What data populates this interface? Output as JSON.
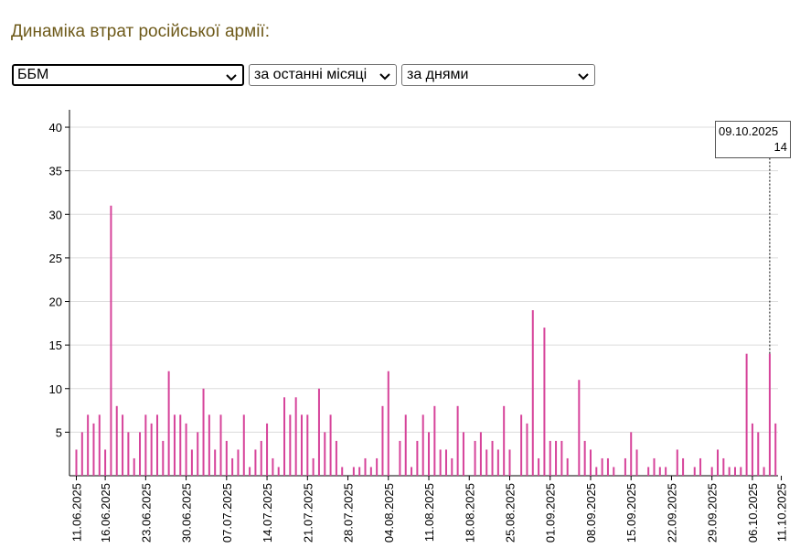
{
  "header": {
    "title": "Динаміка втрат російської армії:"
  },
  "filters": {
    "category": "ББМ",
    "period": "за останні місяці",
    "granularity": "за днями"
  },
  "tooltip": {
    "date": "09.10.2025",
    "value": "14"
  },
  "chart_data": {
    "type": "bar",
    "title": "",
    "xlabel": "",
    "ylabel": "",
    "ylim": [
      0,
      42
    ],
    "yticks": [
      5,
      10,
      15,
      20,
      25,
      30,
      35,
      40
    ],
    "grid": true,
    "bar_color": "#d6439a",
    "start_date": "11.06.2025",
    "x_tick_labels": [
      "11.06.2025",
      "16.06.2025",
      "23.06.2025",
      "30.06.2025",
      "07.07.2025",
      "14.07.2025",
      "21.07.2025",
      "28.07.2025",
      "04.08.2025",
      "11.08.2025",
      "18.08.2025",
      "25.08.2025",
      "01.09.2025",
      "08.09.2025",
      "15.09.2025",
      "22.09.2025",
      "29.09.2025",
      "06.10.2025",
      "11.10.2025"
    ],
    "values": [
      3,
      5,
      7,
      6,
      7,
      3,
      31,
      8,
      7,
      5,
      2,
      5,
      7,
      6,
      7,
      4,
      12,
      7,
      7,
      6,
      3,
      5,
      10,
      7,
      3,
      7,
      4,
      2,
      3,
      7,
      1,
      3,
      4,
      6,
      2,
      1,
      9,
      7,
      9,
      7,
      7,
      2,
      10,
      5,
      7,
      4,
      1,
      0,
      1,
      1,
      2,
      1,
      2,
      8,
      12,
      0,
      4,
      7,
      1,
      4,
      7,
      5,
      8,
      3,
      3,
      2,
      8,
      5,
      0,
      4,
      5,
      3,
      4,
      3,
      8,
      3,
      0,
      7,
      6,
      19,
      2,
      17,
      4,
      4,
      4,
      2,
      0,
      11,
      4,
      3,
      1,
      2,
      2,
      1,
      0,
      2,
      5,
      3,
      0,
      1,
      2,
      1,
      1,
      0,
      3,
      2,
      0,
      1,
      2,
      0,
      1,
      3,
      2,
      1,
      1,
      1,
      14,
      6,
      5,
      1,
      14,
      6
    ]
  }
}
